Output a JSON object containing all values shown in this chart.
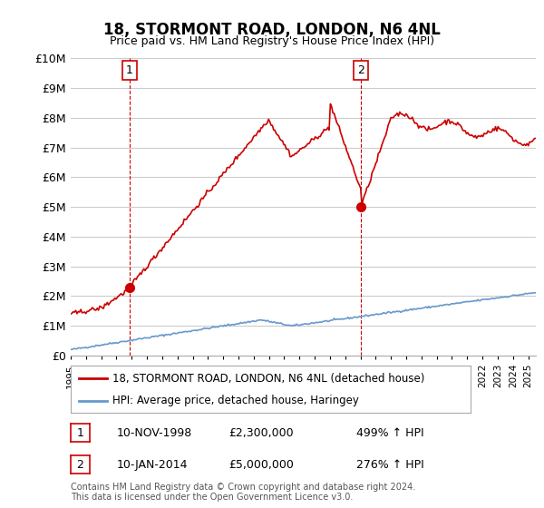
{
  "title": "18, STORMONT ROAD, LONDON, N6 4NL",
  "subtitle": "Price paid vs. HM Land Registry's House Price Index (HPI)",
  "ylim": [
    0,
    10000000
  ],
  "yticks": [
    0,
    1000000,
    2000000,
    3000000,
    4000000,
    5000000,
    6000000,
    7000000,
    8000000,
    9000000,
    10000000
  ],
  "ytick_labels": [
    "£0",
    "£1M",
    "£2M",
    "£3M",
    "£4M",
    "£5M",
    "£6M",
    "£7M",
    "£8M",
    "£9M",
    "£10M"
  ],
  "sale1_date_num": 1998.86,
  "sale1_price": 2300000,
  "sale1_label": "1",
  "sale1_date_str": "10-NOV-1998",
  "sale1_pct": "499%",
  "sale2_date_num": 2014.03,
  "sale2_price": 5000000,
  "sale2_label": "2",
  "sale2_date_str": "10-JAN-2014",
  "sale2_pct": "276%",
  "line_color_price": "#cc0000",
  "line_color_hpi": "#6699cc",
  "background_color": "#ffffff",
  "grid_color": "#cccccc",
  "legend_label_price": "18, STORMONT ROAD, LONDON, N6 4NL (detached house)",
  "legend_label_hpi": "HPI: Average price, detached house, Haringey",
  "footer": "Contains HM Land Registry data © Crown copyright and database right 2024.\nThis data is licensed under the Open Government Licence v3.0.",
  "xmin": 1995.0,
  "xmax": 2025.5
}
